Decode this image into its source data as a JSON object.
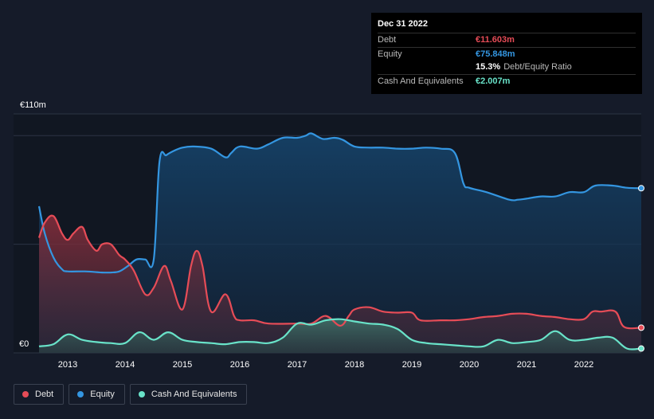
{
  "tooltip": {
    "date": "Dec 31 2022",
    "debt_label": "Debt",
    "debt_value": "€11.603m",
    "equity_label": "Equity",
    "equity_value": "€75.848m",
    "ratio_value": "15.3%",
    "ratio_label": "Debt/Equity Ratio",
    "cash_label": "Cash And Equivalents",
    "cash_value": "€2.007m"
  },
  "colors": {
    "debt": "#e64c57",
    "equity": "#3496e1",
    "cash": "#69e3c9",
    "grid": "#2c3444",
    "axis_text": "#ffffff"
  },
  "legend": [
    {
      "label": "Debt",
      "color": "#e64c57"
    },
    {
      "label": "Equity",
      "color": "#3496e1"
    },
    {
      "label": "Cash And Equivalents",
      "color": "#69e3c9"
    }
  ],
  "chart_data": {
    "type": "area",
    "title": "",
    "xlabel": "",
    "ylabel": "",
    "y_top_label": "€110m",
    "y_bottom_label": "€0",
    "ylim": [
      0,
      110
    ],
    "xlim": [
      2012.5,
      2023.0
    ],
    "x_ticks": [
      2013,
      2014,
      2015,
      2016,
      2017,
      2018,
      2019,
      2020,
      2021,
      2022
    ],
    "x_tick_labels": [
      "2013",
      "2014",
      "2015",
      "2016",
      "2017",
      "2018",
      "2019",
      "2020",
      "2021",
      "2022"
    ],
    "series": [
      {
        "name": "Equity",
        "x": [
          2012.5,
          2012.6,
          2012.75,
          2012.9,
          2013.0,
          2013.3,
          2013.6,
          2013.75,
          2013.9,
          2014.05,
          2014.2,
          2014.35,
          2014.5,
          2014.6,
          2014.72,
          2014.85,
          2015.0,
          2015.2,
          2015.5,
          2015.75,
          2015.85,
          2016.0,
          2016.3,
          2016.5,
          2016.75,
          2017.0,
          2017.15,
          2017.25,
          2017.45,
          2017.65,
          2017.8,
          2018.0,
          2018.25,
          2018.5,
          2018.75,
          2019.0,
          2019.25,
          2019.5,
          2019.75,
          2019.9,
          2020.0,
          2020.3,
          2020.7,
          2020.85,
          2021.0,
          2021.25,
          2021.5,
          2021.75,
          2022.0,
          2022.2,
          2022.5,
          2022.75,
          2023.0
        ],
        "values": [
          67.5,
          55,
          44,
          38.5,
          37.5,
          37.5,
          37,
          37,
          37.5,
          40,
          43,
          43,
          43,
          88,
          91,
          93,
          94.5,
          95,
          94,
          90,
          92,
          95,
          94,
          96,
          99,
          99,
          100,
          101,
          98.5,
          99,
          98,
          95,
          94.5,
          94.5,
          94,
          94,
          94.5,
          94,
          92,
          78,
          76,
          74,
          70.5,
          70.5,
          71,
          72,
          72,
          74,
          74,
          77,
          77,
          76,
          75.8
        ]
      },
      {
        "name": "Debt",
        "x": [
          2012.5,
          2012.6,
          2012.75,
          2012.9,
          2013.0,
          2013.1,
          2013.25,
          2013.35,
          2013.5,
          2013.6,
          2013.75,
          2013.9,
          2014.0,
          2014.15,
          2014.35,
          2014.5,
          2014.68,
          2014.8,
          2015.0,
          2015.15,
          2015.25,
          2015.35,
          2015.5,
          2015.75,
          2015.9,
          2016.0,
          2016.25,
          2016.5,
          2017.0,
          2017.25,
          2017.5,
          2017.75,
          2017.9,
          2018.0,
          2018.25,
          2018.5,
          2018.75,
          2019.0,
          2019.15,
          2019.5,
          2019.75,
          2020.0,
          2020.25,
          2020.5,
          2020.75,
          2021.0,
          2021.25,
          2021.5,
          2021.75,
          2022.0,
          2022.15,
          2022.3,
          2022.55,
          2022.7,
          2023.0
        ],
        "values": [
          53,
          60,
          63,
          55,
          52,
          55,
          58,
          52,
          47,
          50,
          50,
          45,
          43,
          38,
          27,
          30,
          40,
          33,
          20,
          40,
          47,
          40,
          19,
          27,
          17,
          15,
          15,
          13.5,
          13.5,
          13.5,
          17,
          12.5,
          17,
          20,
          21,
          19,
          18.5,
          18.5,
          15,
          15,
          15,
          15.5,
          16.5,
          17,
          18,
          18,
          17,
          16.5,
          15.5,
          15.5,
          19,
          19,
          19,
          12,
          11.6
        ]
      },
      {
        "name": "Cash And Equivalents",
        "x": [
          2012.5,
          2012.75,
          2013.0,
          2013.25,
          2013.5,
          2013.75,
          2014.0,
          2014.25,
          2014.5,
          2014.75,
          2015.0,
          2015.25,
          2015.5,
          2015.75,
          2016.0,
          2016.25,
          2016.5,
          2016.75,
          2017.0,
          2017.25,
          2017.5,
          2017.75,
          2018.0,
          2018.25,
          2018.5,
          2018.75,
          2019.0,
          2019.25,
          2019.5,
          2019.75,
          2020.0,
          2020.25,
          2020.5,
          2020.75,
          2021.0,
          2021.25,
          2021.5,
          2021.75,
          2022.0,
          2022.25,
          2022.5,
          2022.75,
          2023.0
        ],
        "values": [
          3,
          4,
          8.5,
          6,
          5,
          4.5,
          4.5,
          9.5,
          6,
          9.5,
          6,
          5,
          4.5,
          4,
          5,
          5,
          4.5,
          7,
          13.5,
          13,
          15,
          15.5,
          14.5,
          13.5,
          13,
          11,
          6,
          4.5,
          4,
          3.5,
          3,
          3,
          6,
          4.5,
          5,
          6,
          10,
          6,
          6,
          7,
          7,
          2,
          2.0
        ]
      }
    ]
  }
}
